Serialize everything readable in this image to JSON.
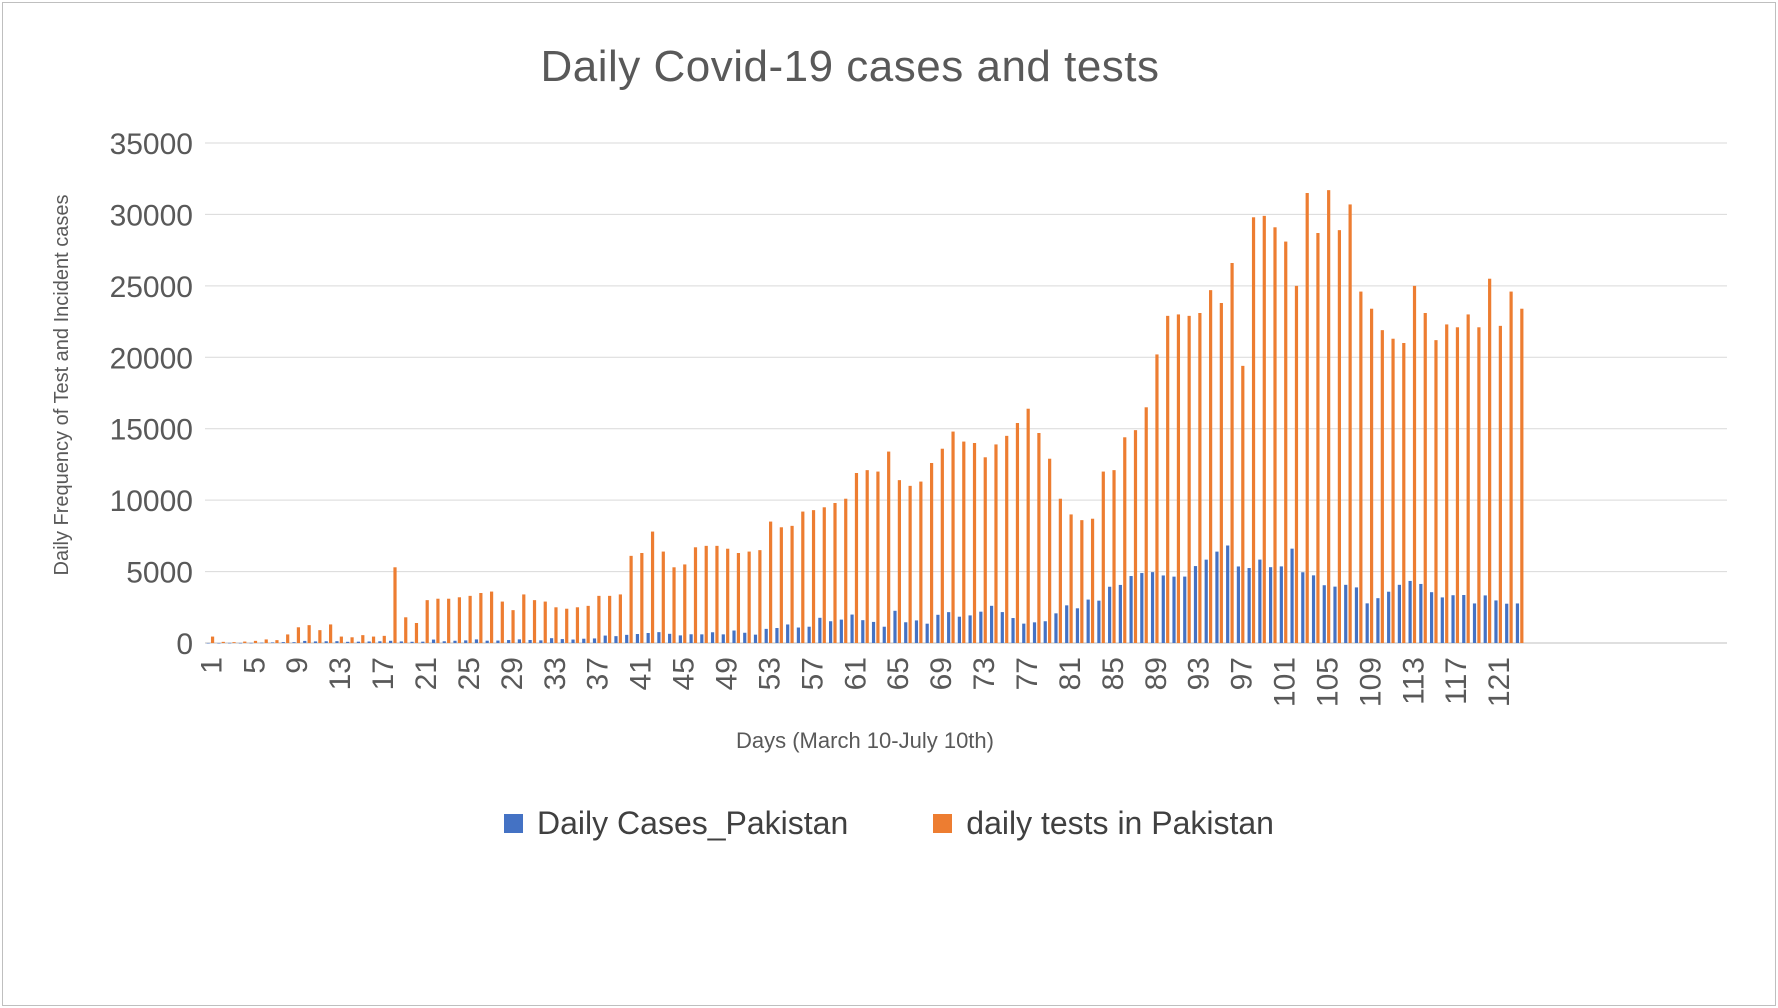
{
  "chart_data": {
    "type": "bar",
    "title": "Daily Covid-19 cases and tests",
    "xlabel": "Days (March 10-July 10th)",
    "ylabel": "Daily Frequency of Test and Incident cases",
    "ylim": [
      0,
      35000
    ],
    "y_ticks": [
      0,
      5000,
      10000,
      15000,
      20000,
      25000,
      30000,
      35000
    ],
    "x_ticks": [
      1,
      5,
      9,
      13,
      17,
      21,
      25,
      29,
      33,
      37,
      41,
      45,
      49,
      53,
      57,
      61,
      65,
      69,
      73,
      77,
      81,
      85,
      89,
      93,
      97,
      101,
      105,
      109,
      113,
      117,
      121
    ],
    "grid": true,
    "legend_position": "bottom",
    "x": [
      1,
      2,
      3,
      4,
      5,
      6,
      7,
      8,
      9,
      10,
      11,
      12,
      13,
      14,
      15,
      16,
      17,
      18,
      19,
      20,
      21,
      22,
      23,
      24,
      25,
      26,
      27,
      28,
      29,
      30,
      31,
      32,
      33,
      34,
      35,
      36,
      37,
      38,
      39,
      40,
      41,
      42,
      43,
      44,
      45,
      46,
      47,
      48,
      49,
      50,
      51,
      52,
      53,
      54,
      55,
      56,
      57,
      58,
      59,
      60,
      61,
      62,
      63,
      64,
      65,
      66,
      67,
      68,
      69,
      70,
      71,
      72,
      73,
      74,
      75,
      76,
      77,
      78,
      79,
      80,
      81,
      82,
      83,
      84,
      85,
      86,
      87,
      88,
      89,
      90,
      91,
      92,
      93,
      94,
      95,
      96,
      97,
      98,
      99,
      100,
      101,
      102,
      103,
      104,
      105,
      106,
      107,
      108,
      109,
      110,
      111,
      112,
      113,
      114,
      115,
      116,
      117,
      118,
      119,
      120,
      121,
      122,
      123
    ],
    "series": [
      {
        "name": "Daily Cases_Pakistan",
        "color": "#4472C4",
        "values": [
          4,
          1,
          8,
          5,
          10,
          23,
          41,
          63,
          57,
          146,
          111,
          122,
          128,
          83,
          93,
          107,
          121,
          153,
          111,
          87,
          94,
          240,
          120,
          157,
          183,
          251,
          161,
          170,
          206,
          254,
          211,
          186,
          336,
          274,
          243,
          300,
          320,
          520,
          480,
          570,
          628,
          700,
          760,
          642,
          533,
          611,
          605,
          751,
          605,
          874,
          717,
          585,
          989,
          1049,
          1297,
          1083,
          1140,
          1764,
          1523,
          1637,
          1991,
          1598,
          1476,
          1140,
          2255,
          1452,
          1581,
          1352,
          1974,
          2160,
          1841,
          1932,
          2193,
          2603,
          2164,
          1748,
          1356,
          1446,
          1523,
          2076,
          2636,
          2429,
          3039,
          2964,
          3938,
          4065,
          4688,
          4896,
          4960,
          4728,
          4646,
          4649,
          5385,
          5834,
          6397,
          6825,
          5358,
          5248,
          5839,
          5307,
          5363,
          6604,
          4951,
          4735,
          4044,
          3946,
          4072,
          3892,
          2775,
          3138,
          3590,
          4072,
          4344,
          4133,
          3557,
          3191,
          3344,
          3359,
          2769,
          3331,
          2980,
          2751,
          2769
        ]
      },
      {
        "name": "daily tests in Pakistan",
        "color": "#ED7D31",
        "values": [
          450,
          80,
          60,
          100,
          150,
          250,
          200,
          600,
          1100,
          1250,
          900,
          1300,
          450,
          400,
          550,
          450,
          500,
          5300,
          1800,
          1400,
          3000,
          3100,
          3100,
          3200,
          3300,
          3500,
          3600,
          2900,
          2300,
          3400,
          3000,
          2900,
          2500,
          2400,
          2500,
          2600,
          3300,
          3300,
          3400,
          6100,
          6300,
          7800,
          6400,
          5300,
          5500,
          6700,
          6800,
          6800,
          6600,
          6300,
          6400,
          6500,
          8500,
          8100,
          8200,
          9200,
          9300,
          9500,
          9800,
          10100,
          11900,
          12100,
          12000,
          13400,
          11400,
          11000,
          11300,
          12600,
          13600,
          14800,
          14100,
          14000,
          13000,
          13900,
          14500,
          15400,
          16400,
          14700,
          12900,
          10100,
          9000,
          8600,
          8700,
          12000,
          12100,
          14400,
          14900,
          16500,
          20200,
          22900,
          23000,
          22900,
          23100,
          24700,
          23800,
          26600,
          19400,
          29800,
          29900,
          29100,
          28100,
          25000,
          31500,
          28700,
          31700,
          28900,
          30700,
          24600,
          23400,
          21900,
          21300,
          21000,
          25000,
          23100,
          21200,
          22300,
          22100,
          23000,
          22100,
          25500,
          22200,
          24600,
          23400
        ]
      }
    ]
  }
}
